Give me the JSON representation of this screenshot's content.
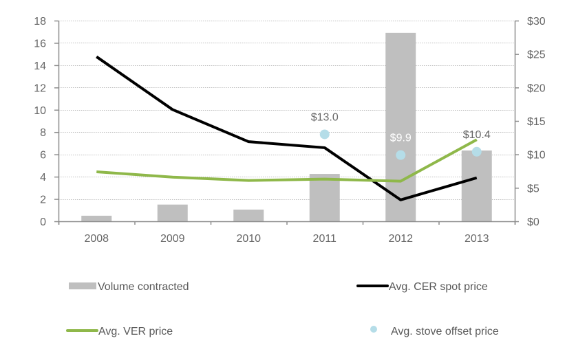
{
  "chart_data": {
    "type": "bar+line",
    "title": "",
    "categories": [
      "2008",
      "2009",
      "2010",
      "2011",
      "2012",
      "2013"
    ],
    "left_axis": {
      "label": "",
      "ylim": [
        0,
        18
      ],
      "ticks": [
        0,
        2,
        4,
        6,
        8,
        10,
        12,
        14,
        16,
        18
      ],
      "tick_labels": [
        "0",
        "2",
        "4",
        "6",
        "8",
        "10",
        "12",
        "14",
        "16",
        "18"
      ]
    },
    "right_axis": {
      "label": "",
      "ylim": [
        0,
        30
      ],
      "ticks": [
        0,
        5,
        10,
        15,
        20,
        25,
        30
      ],
      "tick_labels": [
        "$0",
        "$5",
        "$10",
        "$15",
        "$20",
        "$25",
        "$30"
      ]
    },
    "grid": true,
    "series": [
      {
        "name": "Volume contracted",
        "type": "bar",
        "axis": "left",
        "color": "#bfbfbf",
        "values": [
          0.5,
          1.5,
          1.05,
          4.25,
          16.9,
          6.35
        ]
      },
      {
        "name": "Avg. CER spot price",
        "type": "line",
        "axis": "right",
        "color": "#000000",
        "values": [
          24.6,
          16.7,
          11.9,
          11.0,
          3.2,
          6.5
        ]
      },
      {
        "name": "Avg. VER price",
        "type": "line",
        "axis": "right",
        "color": "#8fb84a",
        "values": [
          7.4,
          6.6,
          6.1,
          6.3,
          6.0,
          12.2
        ]
      },
      {
        "name": "Avg. stove offset price",
        "type": "scatter",
        "axis": "right",
        "color": "#b5dde8",
        "values": [
          null,
          null,
          null,
          13.0,
          9.9,
          10.4
        ],
        "data_labels": [
          null,
          null,
          null,
          "$13.0",
          "$9.9",
          "$10.4"
        ],
        "data_label_colors": [
          null,
          null,
          null,
          "#666666",
          "#ffffff",
          "#666666"
        ]
      }
    ],
    "legend": {
      "placement": "bottom",
      "items": [
        {
          "label": "Volume contracted",
          "kind": "bar",
          "color": "#bfbfbf"
        },
        {
          "label": "Avg. CER spot price",
          "kind": "line",
          "color": "#000000"
        },
        {
          "label": "Avg. VER price",
          "kind": "line",
          "color": "#8fb84a"
        },
        {
          "label": "Avg. stove offset price",
          "kind": "marker",
          "color": "#b5dde8"
        }
      ]
    }
  }
}
